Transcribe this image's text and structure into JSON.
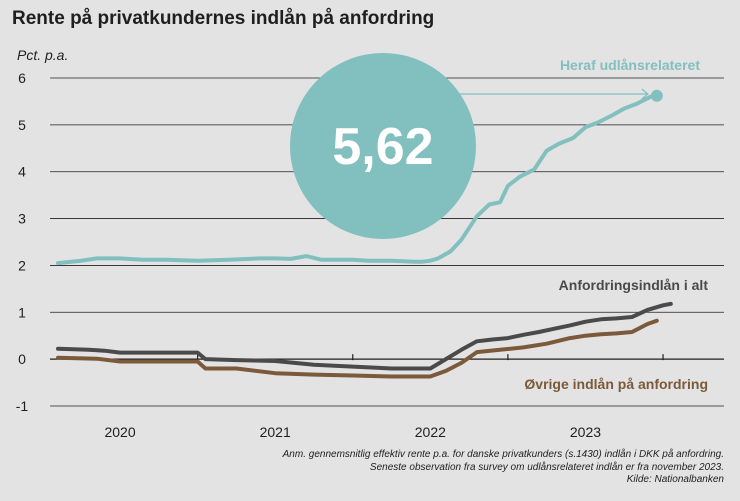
{
  "title": "Rente på privatkundernes indlån på anfordring",
  "footnote": {
    "line1": "Anm. gennemsnitlig effektiv rente p.a. for danske privatkunders (s.1430) indlån i DKK på anfordring.",
    "line2": "Seneste observation fra survey om udlånsrelateret indlån er fra november 2023.",
    "line3": "Kilde: Nationalbanken"
  },
  "highlight": {
    "value_label": "5,62",
    "color": "#82c0bf"
  },
  "chart_data": {
    "type": "line",
    "title": "Rente på privatkundernes indlån på anfordring",
    "ylabel": "Pct. p.a.",
    "xlabel": "",
    "ylim": [
      -1,
      6
    ],
    "yticks": [
      -1,
      0,
      1,
      2,
      3,
      4,
      5,
      6
    ],
    "xlim": [
      2019.6,
      2023.88
    ],
    "year_labels": [
      "2020",
      "2021",
      "2022",
      "2023"
    ],
    "year_centers": [
      2020.0,
      2021.0,
      2022.0,
      2023.0
    ],
    "year_boundaries": [
      2020.5,
      2021.5,
      2022.5,
      2023.5
    ],
    "grid": true,
    "series": [
      {
        "name": "Heraf udlånsrelateret",
        "color": "#82c0bf",
        "x": [
          2019.6,
          2019.75,
          2019.85,
          2020.0,
          2020.15,
          2020.3,
          2020.5,
          2020.7,
          2020.9,
          2021.0,
          2021.1,
          2021.2,
          2021.3,
          2021.4,
          2021.5,
          2021.6,
          2021.75,
          2021.9,
          2021.95,
          2022.0,
          2022.05,
          2022.13,
          2022.2,
          2022.3,
          2022.38,
          2022.45,
          2022.5,
          2022.58,
          2022.67,
          2022.75,
          2022.83,
          2022.92,
          2023.0,
          2023.08,
          2023.17,
          2023.25,
          2023.33,
          2023.42,
          2023.46
        ],
        "values": [
          2.05,
          2.1,
          2.15,
          2.15,
          2.12,
          2.12,
          2.1,
          2.12,
          2.15,
          2.15,
          2.14,
          2.2,
          2.12,
          2.12,
          2.12,
          2.1,
          2.1,
          2.08,
          2.08,
          2.1,
          2.15,
          2.3,
          2.55,
          3.05,
          3.3,
          3.35,
          3.7,
          3.9,
          4.05,
          4.45,
          4.6,
          4.72,
          4.95,
          5.05,
          5.2,
          5.35,
          5.45,
          5.6,
          5.62
        ]
      },
      {
        "name": "Anfordringsindlån i alt",
        "color": "#4a4a4a",
        "x": [
          2019.6,
          2019.8,
          2019.9,
          2020.0,
          2020.2,
          2020.4,
          2020.5,
          2020.55,
          2020.75,
          2021.0,
          2021.25,
          2021.5,
          2021.75,
          2022.0,
          2022.1,
          2022.2,
          2022.3,
          2022.4,
          2022.5,
          2022.6,
          2022.7,
          2022.8,
          2022.9,
          2023.0,
          2023.1,
          2023.2,
          2023.3,
          2023.4,
          2023.5,
          2023.55
        ],
        "values": [
          0.22,
          0.2,
          0.18,
          0.14,
          0.14,
          0.14,
          0.14,
          0.0,
          -0.02,
          -0.04,
          -0.12,
          -0.16,
          -0.2,
          -0.2,
          0.0,
          0.2,
          0.38,
          0.42,
          0.45,
          0.52,
          0.58,
          0.65,
          0.72,
          0.8,
          0.85,
          0.87,
          0.9,
          1.05,
          1.15,
          1.18
        ]
      },
      {
        "name": "Øvrige indlån på anfordring",
        "color": "#7a5a3a",
        "x": [
          2019.6,
          2019.85,
          2020.0,
          2020.25,
          2020.5,
          2020.55,
          2020.75,
          2021.0,
          2021.25,
          2021.5,
          2021.75,
          2022.0,
          2022.1,
          2022.2,
          2022.3,
          2022.45,
          2022.6,
          2022.75,
          2022.9,
          2023.0,
          2023.1,
          2023.2,
          2023.3,
          2023.4,
          2023.46
        ],
        "values": [
          0.03,
          0.01,
          -0.05,
          -0.05,
          -0.05,
          -0.2,
          -0.2,
          -0.3,
          -0.33,
          -0.35,
          -0.37,
          -0.37,
          -0.25,
          -0.08,
          0.15,
          0.2,
          0.25,
          0.33,
          0.45,
          0.5,
          0.53,
          0.55,
          0.58,
          0.75,
          0.82
        ]
      }
    ]
  }
}
